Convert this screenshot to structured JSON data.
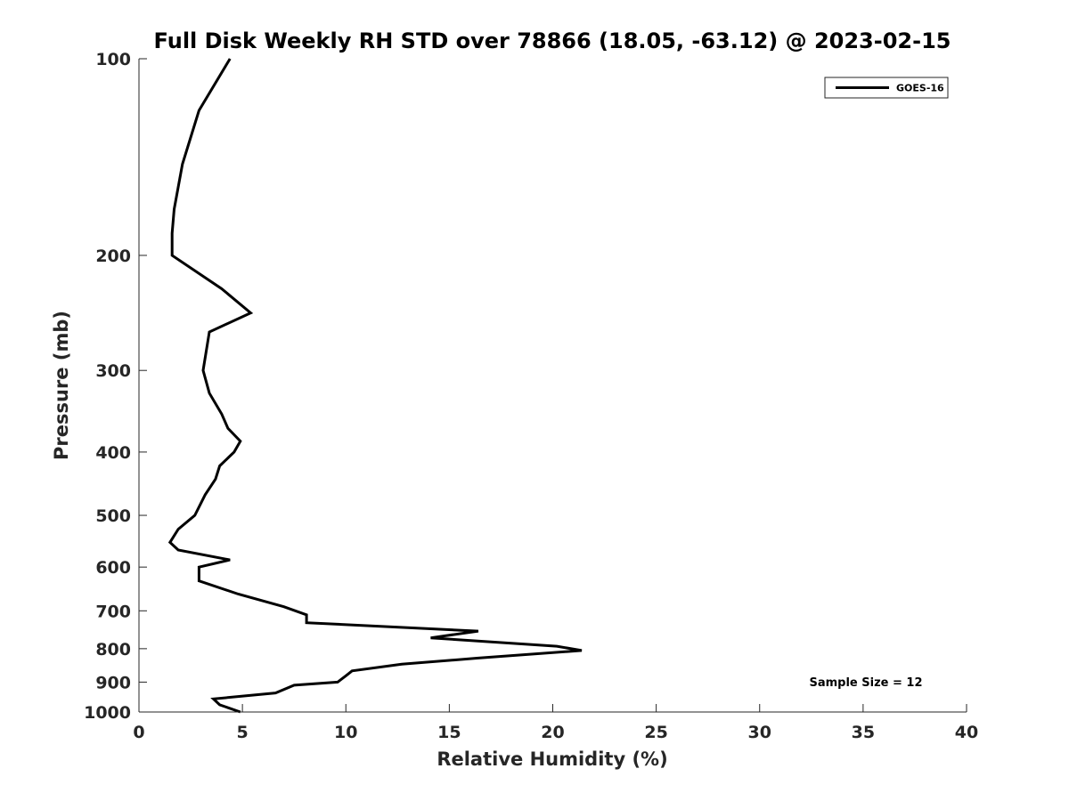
{
  "chart_data": {
    "type": "line",
    "title": "Full Disk Weekly RH STD over 78866 (18.05, -63.12) @ 2023-02-15",
    "xlabel": "Relative Humidity (%)",
    "ylabel": "Pressure (mb)",
    "xlim": [
      0,
      40
    ],
    "ylim": [
      100,
      1000
    ],
    "yscale": "log",
    "y_reversed": true,
    "grid": false,
    "xticks": [
      0,
      5,
      10,
      15,
      20,
      25,
      30,
      35,
      40
    ],
    "yticks": [
      100,
      200,
      300,
      400,
      500,
      600,
      700,
      800,
      900,
      1000
    ],
    "legend": {
      "position": "top-right",
      "entries": [
        "GOES-16"
      ]
    },
    "annotation": "Sample Size = 12",
    "series": [
      {
        "name": "GOES-16",
        "color": "#000000",
        "x": [
          4.4,
          2.9,
          2.1,
          1.7,
          1.6,
          1.6,
          4.0,
          5.4,
          3.4,
          3.1,
          3.4,
          4.0,
          4.3,
          4.9,
          4.6,
          3.9,
          3.7,
          3.2,
          2.7,
          1.9,
          1.5,
          1.9,
          4.4,
          2.9,
          2.9,
          4.8,
          7.0,
          8.1,
          8.1,
          16.4,
          14.1,
          20.2,
          21.4,
          16.4,
          12.7,
          10.3,
          10.0,
          9.6,
          7.5,
          6.6,
          3.6,
          3.9,
          4.9
        ],
        "y": [
          100,
          120,
          145,
          170,
          185,
          200,
          225,
          245,
          262,
          300,
          325,
          350,
          368,
          385,
          400,
          420,
          440,
          465,
          500,
          525,
          550,
          565,
          585,
          600,
          630,
          660,
          690,
          710,
          730,
          752,
          770,
          793,
          805,
          827,
          845,
          865,
          880,
          900,
          910,
          935,
          955,
          975,
          1000
        ]
      }
    ]
  }
}
